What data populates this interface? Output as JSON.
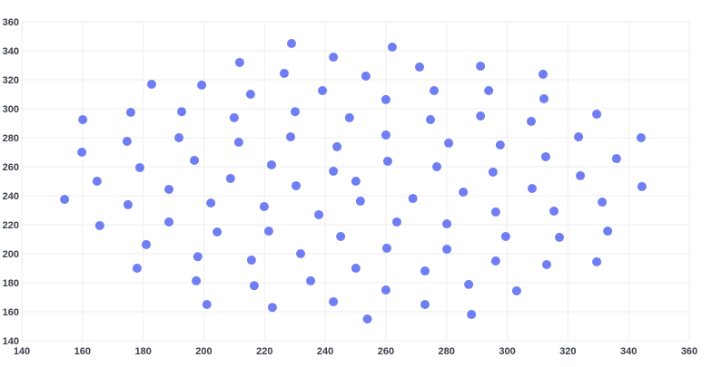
{
  "chart_data": {
    "type": "scatter",
    "title": "",
    "xlabel": "",
    "ylabel": "",
    "xlim": [
      140,
      360
    ],
    "ylim": [
      140,
      360
    ],
    "xticks": [
      140,
      160,
      180,
      200,
      220,
      240,
      260,
      280,
      300,
      320,
      340,
      360
    ],
    "yticks": [
      140,
      160,
      180,
      200,
      220,
      240,
      260,
      280,
      300,
      320,
      340,
      360
    ],
    "grid": true,
    "colors": {
      "marker": "#6f7ef2",
      "grid": "#eeeeee",
      "text": "#3a3f4b"
    },
    "points": [
      [
        154.1,
        237.5
      ],
      [
        160.1,
        292.5
      ],
      [
        159.8,
        270
      ],
      [
        164.8,
        250
      ],
      [
        165.7,
        219.4
      ],
      [
        175.9,
        297.5
      ],
      [
        174.7,
        277.5
      ],
      [
        175,
        233.8
      ],
      [
        178.9,
        259.4
      ],
      [
        178,
        190
      ],
      [
        181,
        206.3
      ],
      [
        182.8,
        316.9
      ],
      [
        192.7,
        298
      ],
      [
        191.8,
        280
      ],
      [
        188.5,
        244.4
      ],
      [
        188.5,
        221.9
      ],
      [
        196.9,
        264.4
      ],
      [
        198,
        198
      ],
      [
        197.5,
        181.3
      ],
      [
        199.3,
        316.3
      ],
      [
        202.3,
        235
      ],
      [
        204.4,
        215
      ],
      [
        201,
        165
      ],
      [
        211.8,
        331.9
      ],
      [
        210,
        293.8
      ],
      [
        211.5,
        276.9
      ],
      [
        208.8,
        251.9
      ],
      [
        215.4,
        310
      ],
      [
        215.7,
        195.6
      ],
      [
        216.6,
        178
      ],
      [
        222.3,
        261.3
      ],
      [
        219.9,
        232.5
      ],
      [
        221.4,
        215.6
      ],
      [
        222.6,
        163
      ],
      [
        228.9,
        345
      ],
      [
        226.5,
        324.4
      ],
      [
        230.1,
        298
      ],
      [
        228.6,
        280.6
      ],
      [
        230.4,
        246.9
      ],
      [
        231.9,
        200
      ],
      [
        235.2,
        181.3
      ],
      [
        242.7,
        335.6
      ],
      [
        239.1,
        312.5
      ],
      [
        243.9,
        273.8
      ],
      [
        242.7,
        256.9
      ],
      [
        237.9,
        226.9
      ],
      [
        245.1,
        211.9
      ],
      [
        242.7,
        166.9
      ],
      [
        253.4,
        322.5
      ],
      [
        248,
        293.8
      ],
      [
        250.1,
        250
      ],
      [
        251.6,
        236.3
      ],
      [
        250.1,
        190
      ],
      [
        253.9,
        155
      ],
      [
        262.1,
        342.5
      ],
      [
        260,
        306.3
      ],
      [
        260,
        281.9
      ],
      [
        260.6,
        263.8
      ],
      [
        263.6,
        221.9
      ],
      [
        260.3,
        203.8
      ],
      [
        260,
        175
      ],
      [
        271.1,
        328.8
      ],
      [
        275.9,
        312.5
      ],
      [
        274.7,
        292.5
      ],
      [
        280.7,
        276.3
      ],
      [
        276.8,
        260
      ],
      [
        268.9,
        238.1
      ],
      [
        280.1,
        220.6
      ],
      [
        280.1,
        203.1
      ],
      [
        272.9,
        188.1
      ],
      [
        272.9,
        165
      ],
      [
        285.5,
        242.5
      ],
      [
        287.3,
        178.8
      ],
      [
        288.2,
        158.1
      ],
      [
        291.2,
        329.4
      ],
      [
        293.9,
        312.5
      ],
      [
        291.2,
        295
      ],
      [
        297.7,
        275
      ],
      [
        295.3,
        256.3
      ],
      [
        296.2,
        228.8
      ],
      [
        299.5,
        211.9
      ],
      [
        296.2,
        195
      ],
      [
        303.1,
        174.4
      ],
      [
        311.8,
        323.8
      ],
      [
        312.1,
        306.9
      ],
      [
        307.9,
        291.3
      ],
      [
        312.7,
        266.9
      ],
      [
        308.2,
        245
      ],
      [
        315.4,
        229.4
      ],
      [
        317.2,
        211.3
      ],
      [
        313,
        192.5
      ],
      [
        323.5,
        280.6
      ],
      [
        329.5,
        296.3
      ],
      [
        324.1,
        253.8
      ],
      [
        331.3,
        235.6
      ],
      [
        336,
        265.6
      ],
      [
        333.1,
        215.6
      ],
      [
        329.5,
        194.4
      ],
      [
        344.1,
        280
      ],
      [
        344.4,
        246.3
      ]
    ]
  }
}
